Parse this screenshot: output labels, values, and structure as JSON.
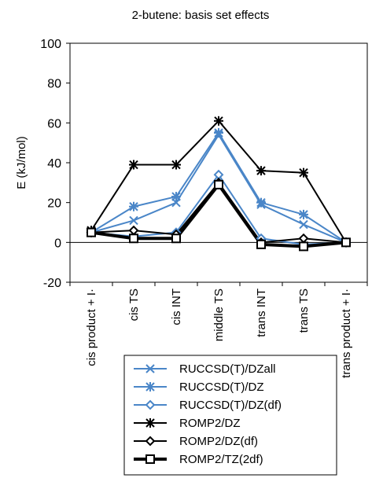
{
  "chart_data": {
    "type": "line",
    "title": "2-butene: basis set effects",
    "xlabel": "",
    "ylabel": "E (kJ/mol)",
    "ylim": [
      -20,
      100
    ],
    "yticks": [
      -20,
      0,
      20,
      40,
      60,
      80,
      100
    ],
    "grid": false,
    "legend_position": "bottom",
    "categories": [
      "cis product + I·",
      "cis TS",
      "cis INT",
      "middle TS",
      "trans INT",
      "trans TS",
      "trans product + I·"
    ],
    "series": [
      {
        "name": "RUCCSD(T)/DZall",
        "color": "#4a86c8",
        "marker": "x",
        "linewidth": 2,
        "values": [
          5,
          11,
          20,
          54,
          19,
          9,
          0
        ]
      },
      {
        "name": "RUCCSD(T)/DZ",
        "color": "#4a86c8",
        "marker": "asterisk",
        "linewidth": 2,
        "values": [
          5,
          18,
          23,
          55,
          20,
          14,
          0
        ]
      },
      {
        "name": "RUCCSD(T)/DZ(df)",
        "color": "#4a86c8",
        "marker": "diamond",
        "linewidth": 2,
        "values": [
          5,
          3,
          5,
          34,
          2,
          -1,
          0
        ]
      },
      {
        "name": "ROMP2/DZ",
        "color": "#000000",
        "marker": "asterisk",
        "linewidth": 2,
        "values": [
          6,
          39,
          39,
          61,
          36,
          35,
          0
        ]
      },
      {
        "name": "ROMP2/DZ(df)",
        "color": "#000000",
        "marker": "diamond",
        "linewidth": 2,
        "values": [
          5,
          6,
          4,
          30,
          0,
          2,
          0
        ]
      },
      {
        "name": "ROMP2/TZ(2df)",
        "color": "#000000",
        "marker": "square",
        "linewidth": 4,
        "values": [
          5,
          2,
          2,
          29,
          -1,
          -2,
          0
        ]
      }
    ]
  }
}
